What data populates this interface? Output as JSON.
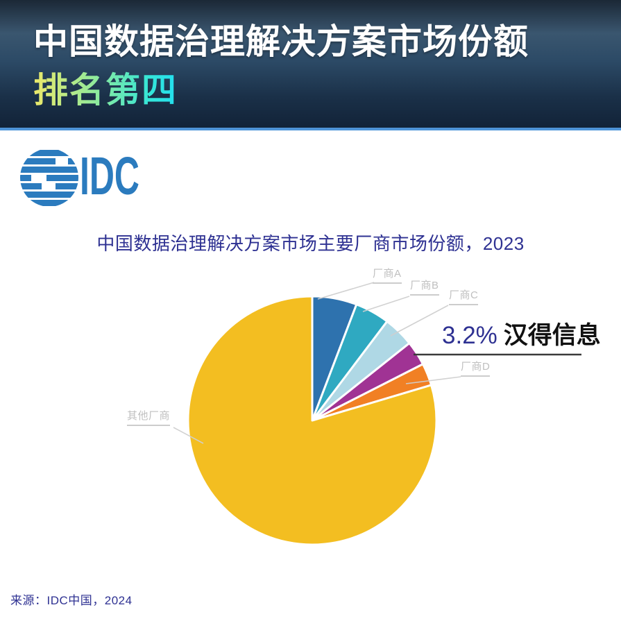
{
  "header": {
    "title_line1": "中国数据治理解决方案市场份额",
    "title_line2": "排名第四"
  },
  "logo": {
    "brand": "IDC",
    "color": "#2b7bbe"
  },
  "chart_data": {
    "type": "pie",
    "title": "中国数据治理解决方案市场主要厂商市场份额，2023",
    "start_angle_deg": 0,
    "direction": "clockwise",
    "legend_position": "callout-labels",
    "slices": [
      {
        "key": "vendor-a",
        "label": "厂商A",
        "value": 5.8,
        "color": "#2e72ae"
      },
      {
        "key": "vendor-b",
        "label": "厂商B",
        "value": 4.5,
        "color": "#2fa9c1"
      },
      {
        "key": "vendor-c",
        "label": "厂商C",
        "value": 4.0,
        "color": "#afd8e5"
      },
      {
        "key": "hand",
        "label": "汉得信息",
        "value": 3.2,
        "value_label": "3.2%",
        "highlighted": true,
        "color": "#a03394"
      },
      {
        "key": "vendor-d",
        "label": "厂商D",
        "value": 2.9,
        "color": "#f18024"
      },
      {
        "key": "others",
        "label": "其他厂商",
        "value": 79.6,
        "color": "#f3be21"
      }
    ]
  },
  "footer": {
    "source": "来源：IDC中国，2024"
  }
}
